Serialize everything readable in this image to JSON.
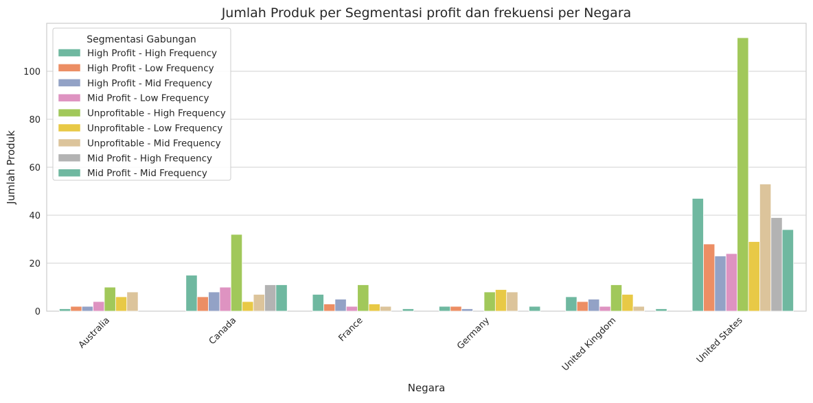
{
  "chart_data": {
    "type": "bar",
    "title": "Jumlah Produk per Segmentasi profit dan frekuensi per Negara",
    "xlabel": "Negara",
    "ylabel": "Jumlah Produk",
    "ylim": [
      0,
      120
    ],
    "yticks": [
      0,
      20,
      40,
      60,
      80,
      100
    ],
    "grid": true,
    "legend_title": "Segmentasi Gabungan",
    "legend_position": "top-left",
    "categories": [
      "Australia",
      "Canada",
      "France",
      "Germany",
      "United Kingdom",
      "United States"
    ],
    "series": [
      {
        "name": "High Profit - High Frequency",
        "color": "#6fb8a0",
        "values": [
          1,
          15,
          7,
          2,
          6,
          47
        ]
      },
      {
        "name": "High Profit - Low Frequency",
        "color": "#ec8e64",
        "values": [
          2,
          6,
          3,
          2,
          4,
          28
        ]
      },
      {
        "name": "High Profit - Mid Frequency",
        "color": "#93a2c6",
        "values": [
          2,
          8,
          5,
          1,
          5,
          23
        ]
      },
      {
        "name": "Mid Profit - Low Frequency",
        "color": "#de93c1",
        "values": [
          4,
          10,
          2,
          0,
          2,
          24
        ]
      },
      {
        "name": "Unprofitable - High Frequency",
        "color": "#a1c85a",
        "values": [
          10,
          32,
          11,
          8,
          11,
          114
        ]
      },
      {
        "name": "Unprofitable - Low Frequency",
        "color": "#e8c946",
        "values": [
          6,
          4,
          3,
          9,
          7,
          29
        ]
      },
      {
        "name": "Unprofitable - Mid Frequency",
        "color": "#dcc49b",
        "values": [
          8,
          7,
          2,
          8,
          2,
          53
        ]
      },
      {
        "name": "Mid Profit - High Frequency",
        "color": "#b3b3b3",
        "values": [
          0,
          11,
          0,
          0,
          0,
          39
        ]
      },
      {
        "name": "Mid Profit - Mid Frequency",
        "color": "#6fb8a0",
        "values": [
          0,
          11,
          1,
          2,
          1,
          34
        ]
      }
    ]
  }
}
